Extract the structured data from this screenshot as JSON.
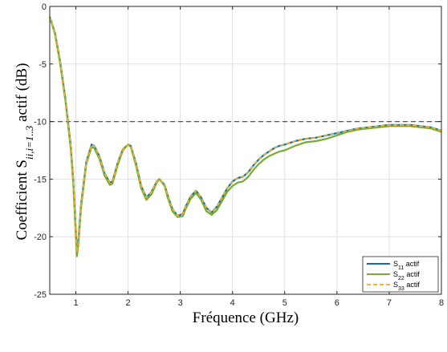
{
  "chart_data": {
    "type": "line",
    "xlabel": "Fréquence (GHz)",
    "ylabel": {
      "prefix": "Coefficient S",
      "subscript": "ii,i=1..3",
      "suffix": " actif (dB)"
    },
    "xlim": [
      0.5,
      8
    ],
    "ylim": [
      -25,
      0
    ],
    "xticks": [
      1,
      2,
      3,
      4,
      5,
      6,
      7,
      8
    ],
    "yticks": [
      0,
      -5,
      -10,
      -15,
      -20,
      -25
    ],
    "grid": true,
    "legend_position": "bottom-right",
    "reference_line": {
      "y": -10,
      "style": "dashed",
      "color": "#555555"
    },
    "series": [
      {
        "name": "S11 actif",
        "label_main": "S",
        "label_sub": "11",
        "label_suffix": " actif",
        "color": "#0072BD",
        "style": "solid",
        "x": [
          0.5,
          0.6,
          0.7,
          0.8,
          0.9,
          0.95,
          1.0,
          1.02,
          1.05,
          1.1,
          1.2,
          1.3,
          1.35,
          1.45,
          1.55,
          1.65,
          1.7,
          1.8,
          1.9,
          2.0,
          2.05,
          2.15,
          2.25,
          2.35,
          2.45,
          2.55,
          2.6,
          2.7,
          2.75,
          2.85,
          2.95,
          3.05,
          3.1,
          3.2,
          3.3,
          3.4,
          3.5,
          3.6,
          3.7,
          3.8,
          3.9,
          4.0,
          4.1,
          4.2,
          4.3,
          4.4,
          4.5,
          4.6,
          4.7,
          4.8,
          4.9,
          5.0,
          5.2,
          5.4,
          5.6,
          5.8,
          6.0,
          6.2,
          6.4,
          6.6,
          6.8,
          7.0,
          7.2,
          7.4,
          7.6,
          7.8,
          8.0
        ],
        "y": [
          -0.9,
          -2.3,
          -4.8,
          -8.0,
          -12.0,
          -15.0,
          -19.5,
          -21.3,
          -20.2,
          -17.2,
          -13.5,
          -12.0,
          -12.1,
          -13.0,
          -14.5,
          -15.3,
          -15.2,
          -13.6,
          -12.4,
          -12.0,
          -12.1,
          -13.6,
          -15.6,
          -16.6,
          -16.1,
          -15.2,
          -15.0,
          -15.5,
          -16.3,
          -17.6,
          -18.2,
          -18.0,
          -17.4,
          -16.5,
          -16.0,
          -16.6,
          -17.5,
          -17.9,
          -17.4,
          -16.6,
          -15.8,
          -15.2,
          -14.9,
          -14.8,
          -14.4,
          -13.8,
          -13.3,
          -12.9,
          -12.6,
          -12.3,
          -12.1,
          -12.0,
          -11.7,
          -11.5,
          -11.4,
          -11.2,
          -11.0,
          -10.8,
          -10.6,
          -10.5,
          -10.4,
          -10.3,
          -10.3,
          -10.3,
          -10.4,
          -10.5,
          -10.8
        ]
      },
      {
        "name": "S22 actif",
        "label_main": "S",
        "label_sub": "22",
        "label_suffix": " actif",
        "color": "#77AC30",
        "style": "solid",
        "x": [
          0.5,
          0.6,
          0.7,
          0.8,
          0.9,
          0.95,
          1.0,
          1.02,
          1.05,
          1.1,
          1.2,
          1.3,
          1.35,
          1.45,
          1.55,
          1.65,
          1.7,
          1.8,
          1.9,
          2.0,
          2.05,
          2.15,
          2.25,
          2.35,
          2.45,
          2.55,
          2.6,
          2.7,
          2.75,
          2.85,
          2.95,
          3.05,
          3.1,
          3.2,
          3.3,
          3.4,
          3.5,
          3.6,
          3.7,
          3.8,
          3.9,
          4.0,
          4.1,
          4.2,
          4.3,
          4.4,
          4.5,
          4.6,
          4.7,
          4.8,
          4.9,
          5.0,
          5.2,
          5.4,
          5.6,
          5.8,
          6.0,
          6.2,
          6.4,
          6.6,
          6.8,
          7.0,
          7.2,
          7.4,
          7.6,
          7.8,
          8.0
        ],
        "y": [
          -0.9,
          -2.4,
          -5.0,
          -8.2,
          -12.3,
          -15.4,
          -20.0,
          -21.7,
          -20.6,
          -17.5,
          -13.7,
          -12.2,
          -12.3,
          -13.2,
          -14.7,
          -15.5,
          -15.4,
          -13.8,
          -12.5,
          -12.0,
          -12.2,
          -13.8,
          -15.8,
          -16.8,
          -16.3,
          -15.3,
          -15.0,
          -15.6,
          -16.5,
          -17.8,
          -18.3,
          -18.2,
          -17.6,
          -16.7,
          -16.2,
          -16.8,
          -17.8,
          -18.1,
          -17.7,
          -16.9,
          -16.1,
          -15.6,
          -15.3,
          -15.2,
          -14.8,
          -14.2,
          -13.7,
          -13.3,
          -13.0,
          -12.8,
          -12.6,
          -12.5,
          -12.1,
          -11.8,
          -11.7,
          -11.5,
          -11.2,
          -10.9,
          -10.7,
          -10.6,
          -10.5,
          -10.4,
          -10.4,
          -10.4,
          -10.5,
          -10.6,
          -10.9
        ]
      },
      {
        "name": "S33 actif",
        "label_main": "S",
        "label_sub": "33",
        "label_suffix": " actif",
        "color": "#FFB020",
        "style": "dashed",
        "x": [
          0.5,
          0.6,
          0.7,
          0.8,
          0.9,
          0.95,
          1.0,
          1.02,
          1.05,
          1.1,
          1.2,
          1.3,
          1.35,
          1.45,
          1.55,
          1.65,
          1.7,
          1.8,
          1.9,
          2.0,
          2.05,
          2.15,
          2.25,
          2.35,
          2.45,
          2.55,
          2.6,
          2.7,
          2.75,
          2.85,
          2.95,
          3.05,
          3.1,
          3.2,
          3.3,
          3.4,
          3.5,
          3.6,
          3.7,
          3.8,
          3.9,
          4.0,
          4.1,
          4.2,
          4.3,
          4.4,
          4.5,
          4.6,
          4.7,
          4.8,
          4.9,
          5.0,
          5.2,
          5.4,
          5.6,
          5.8,
          6.0,
          6.2,
          6.4,
          6.6,
          6.8,
          7.0,
          7.2,
          7.4,
          7.6,
          7.8,
          8.0
        ],
        "y": [
          -0.9,
          -2.3,
          -4.8,
          -8.0,
          -12.0,
          -15.0,
          -19.5,
          -21.3,
          -20.2,
          -17.2,
          -13.5,
          -12.0,
          -12.1,
          -13.0,
          -14.5,
          -15.3,
          -15.2,
          -13.6,
          -12.4,
          -12.0,
          -12.1,
          -13.6,
          -15.6,
          -16.6,
          -16.1,
          -15.2,
          -15.0,
          -15.5,
          -16.3,
          -17.6,
          -18.2,
          -18.0,
          -17.4,
          -16.5,
          -16.0,
          -16.6,
          -17.5,
          -17.9,
          -17.4,
          -16.6,
          -15.8,
          -15.2,
          -14.9,
          -14.8,
          -14.4,
          -13.8,
          -13.3,
          -12.9,
          -12.6,
          -12.3,
          -12.1,
          -12.0,
          -11.7,
          -11.5,
          -11.4,
          -11.2,
          -11.0,
          -10.8,
          -10.6,
          -10.5,
          -10.4,
          -10.3,
          -10.3,
          -10.3,
          -10.4,
          -10.5,
          -10.8
        ]
      }
    ]
  }
}
